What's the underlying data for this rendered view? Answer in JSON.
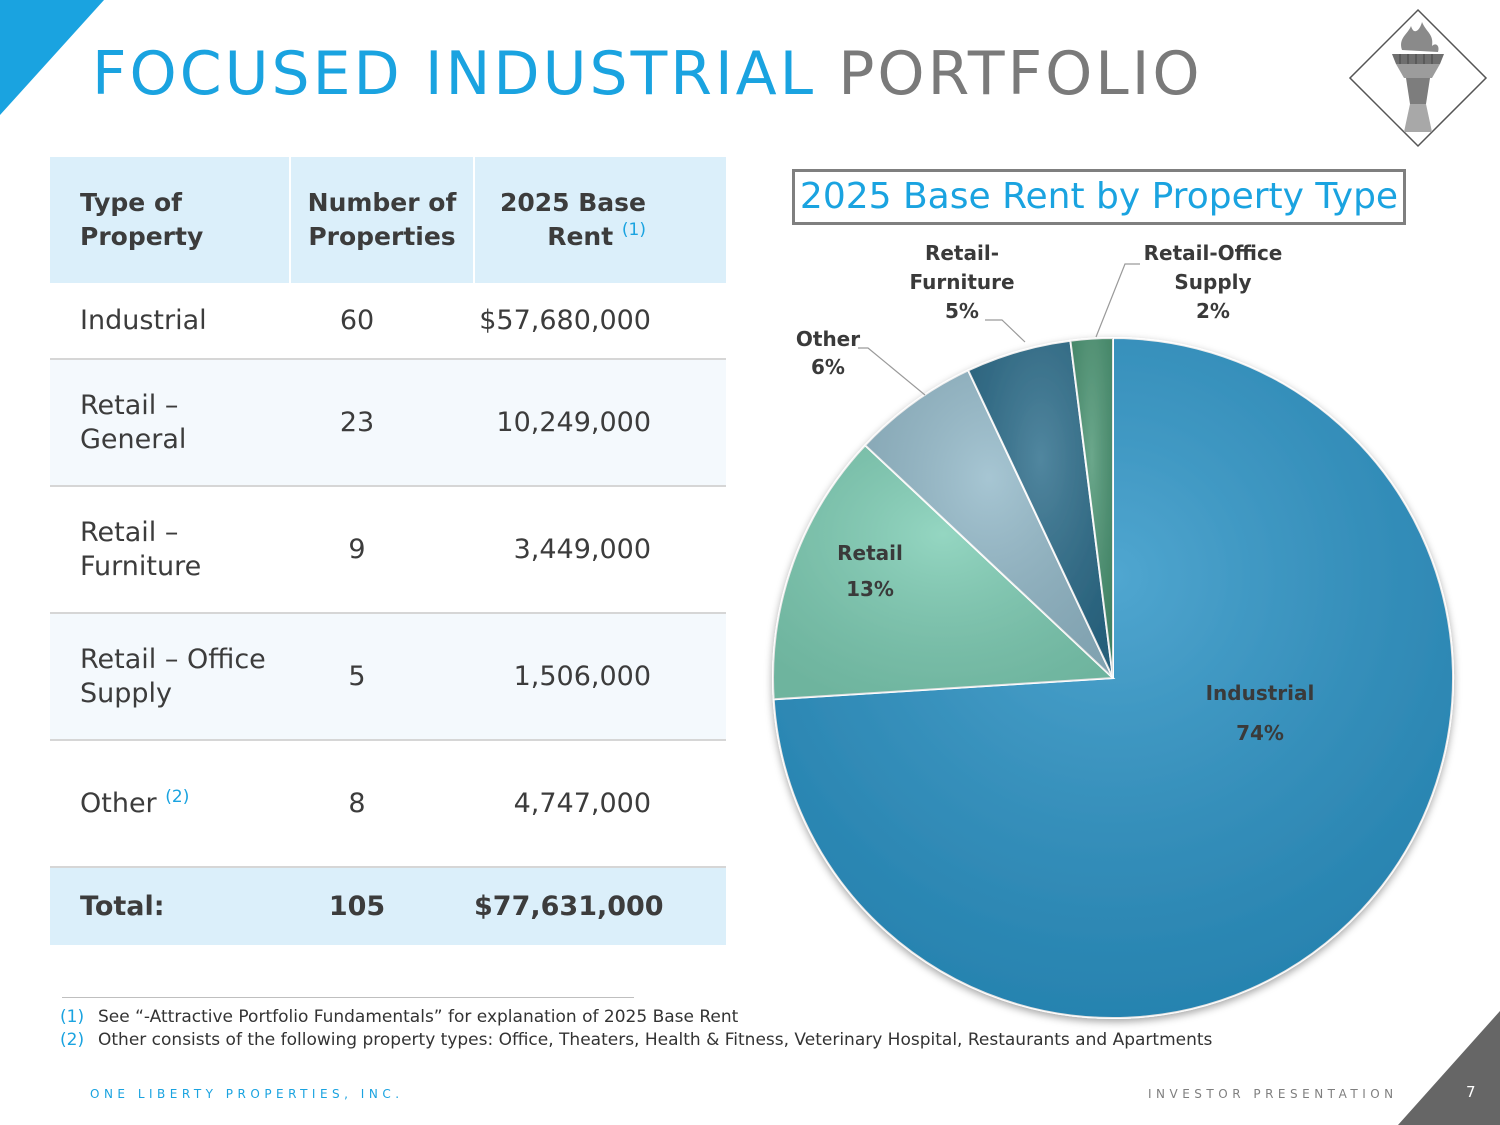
{
  "title": {
    "accent": "FOCUSED INDUSTRIAL",
    "rest": "PORTFOLIO"
  },
  "logo": {
    "icon": "statue-of-liberty-torch-icon"
  },
  "table": {
    "headers": {
      "type": "Type of Property",
      "count": "Number of Properties",
      "rent": "2025 Base Rent",
      "rent_note": "(1)"
    },
    "rows": [
      {
        "type": "Industrial",
        "note": "",
        "count": "60",
        "rent": "$57,680,000"
      },
      {
        "type": "Retail – General",
        "note": "",
        "count": "23",
        "rent": "10,249,000"
      },
      {
        "type": "Retail – Furniture",
        "note": "",
        "count": "9",
        "rent": "3,449,000"
      },
      {
        "type": "Retail – Office Supply",
        "note": "",
        "count": "5",
        "rent": "1,506,000"
      },
      {
        "type": "Other",
        "note": "(2)",
        "count": "8",
        "rent": "4,747,000"
      }
    ],
    "total": {
      "label": "Total:",
      "count": "105",
      "rent": "$77,631,000"
    }
  },
  "chart_data": {
    "type": "pie",
    "title": "2025 Base Rent by Property Type",
    "slices": [
      {
        "label": "Industrial",
        "lines": [
          "Industrial",
          "74%"
        ],
        "value": 74,
        "color": "#2a93c6"
      },
      {
        "label": "Retail",
        "lines": [
          "Retail",
          "13%"
        ],
        "value": 13,
        "color": "#7dcdb4"
      },
      {
        "label": "Other",
        "lines": [
          "Other",
          "6%"
        ],
        "value": 6,
        "color": "#93b9c9"
      },
      {
        "label": "Retail-Furniture",
        "lines": [
          "Retail-",
          "Furniture",
          "5%"
        ],
        "value": 5,
        "color": "#2b6c8a"
      },
      {
        "label": "Retail-Office Supply",
        "lines": [
          "Retail-Office",
          "Supply",
          "2%"
        ],
        "value": 2,
        "color": "#4a9472"
      }
    ]
  },
  "footnotes": [
    {
      "num": "(1)",
      "text": "See “-Attractive Portfolio Fundamentals” for explanation of 2025 Base Rent"
    },
    {
      "num": "(2)",
      "text": "Other consists of the following property types: Office, Theaters, Health & Fitness, Veterinary Hospital, Restaurants and Apartments"
    }
  ],
  "footer": {
    "company": "ONE LIBERTY PROPERTIES, INC.",
    "deck": "INVESTOR PRESENTATION",
    "page": "7"
  }
}
